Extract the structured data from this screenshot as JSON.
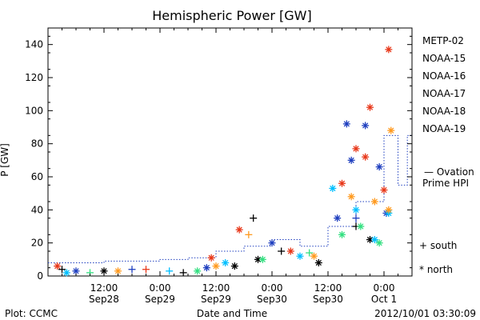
{
  "chart_data": {
    "type": "scatter",
    "title": "Hemispheric Power [GW]",
    "ylabel": "P [GW]",
    "xlabel": "Date and Time",
    "ylim": [
      0,
      150
    ],
    "xlim": [
      "2012-09-28T00:00",
      "2012-10-01T06:00"
    ],
    "y_ticks": [
      0,
      20,
      40,
      60,
      80,
      100,
      120,
      140
    ],
    "x_ticks": [
      {
        "time": "2012-09-28T12:00",
        "label": "12:00",
        "sublabel": "Sep28"
      },
      {
        "time": "2012-09-29T00:00",
        "label": "0:00",
        "sublabel": "Sep29"
      },
      {
        "time": "2012-09-29T12:00",
        "label": "12:00",
        "sublabel": "Sep29"
      },
      {
        "time": "2012-09-30T00:00",
        "label": "0:00",
        "sublabel": "Sep30"
      },
      {
        "time": "2012-09-30T12:00",
        "label": "12:00",
        "sublabel": "Sep30"
      },
      {
        "time": "2012-10-01T00:00",
        "label": "0:00",
        "sublabel": "Oct 1"
      }
    ],
    "legend_position": "right",
    "series": [
      {
        "name": "METP-02",
        "color": "#000000",
        "points": [
          [
            "2012-09-28T03:00",
            4,
            "south"
          ],
          [
            "2012-09-28T12:00",
            3,
            "north"
          ],
          [
            "2012-09-29T05:00",
            2,
            "south"
          ],
          [
            "2012-09-29T16:00",
            6,
            "north"
          ],
          [
            "2012-09-29T20:00",
            35,
            "south"
          ],
          [
            "2012-09-29T21:00",
            10,
            "north"
          ],
          [
            "2012-09-30T02:00",
            15,
            "south"
          ],
          [
            "2012-09-30T10:00",
            8,
            "north"
          ],
          [
            "2012-09-30T18:00",
            30,
            "south"
          ],
          [
            "2012-09-30T21:00",
            22,
            "north"
          ]
        ]
      },
      {
        "name": "NOAA-15",
        "color": "#1f3fbf",
        "points": [
          [
            "2012-09-28T06:00",
            3,
            "north"
          ],
          [
            "2012-09-28T18:00",
            4,
            "south"
          ],
          [
            "2012-09-29T10:00",
            5,
            "north"
          ],
          [
            "2012-09-30T00:00",
            20,
            "north"
          ],
          [
            "2012-09-30T14:00",
            35,
            "north"
          ],
          [
            "2012-09-30T16:00",
            92,
            "north"
          ],
          [
            "2012-09-30T17:00",
            70,
            "north"
          ],
          [
            "2012-09-30T20:00",
            91,
            "north"
          ],
          [
            "2012-09-30T23:00",
            66,
            "north"
          ],
          [
            "2012-09-30T18:00",
            35,
            "south"
          ],
          [
            "2012-10-01T00:30",
            38,
            "north"
          ]
        ]
      },
      {
        "name": "NOAA-16",
        "color": "#00bfff",
        "points": [
          [
            "2012-09-28T04:00",
            2,
            "north"
          ],
          [
            "2012-09-29T02:00",
            3,
            "south"
          ],
          [
            "2012-09-29T14:00",
            8,
            "north"
          ],
          [
            "2012-09-30T06:00",
            12,
            "north"
          ],
          [
            "2012-09-30T13:00",
            53,
            "north"
          ],
          [
            "2012-09-30T18:00",
            40,
            "north"
          ],
          [
            "2012-09-30T22:00",
            22,
            "north"
          ],
          [
            "2012-10-01T01:00",
            38,
            "north"
          ]
        ]
      },
      {
        "name": "NOAA-17",
        "color": "#33e080",
        "points": [
          [
            "2012-09-28T09:00",
            2,
            "south"
          ],
          [
            "2012-09-29T08:00",
            3,
            "north"
          ],
          [
            "2012-09-29T22:00",
            10,
            "north"
          ],
          [
            "2012-09-30T08:00",
            14,
            "south"
          ],
          [
            "2012-09-30T15:00",
            25,
            "north"
          ],
          [
            "2012-09-30T19:00",
            30,
            "north"
          ],
          [
            "2012-09-30T23:00",
            20,
            "north"
          ]
        ]
      },
      {
        "name": "NOAA-18",
        "color": "#ff9a1f",
        "points": [
          [
            "2012-09-28T15:00",
            3,
            "north"
          ],
          [
            "2012-09-29T12:00",
            6,
            "north"
          ],
          [
            "2012-09-29T19:00",
            25,
            "south"
          ],
          [
            "2012-09-30T09:00",
            12,
            "north"
          ],
          [
            "2012-09-30T17:00",
            48,
            "north"
          ],
          [
            "2012-09-30T22:00",
            45,
            "north"
          ],
          [
            "2012-10-01T01:00",
            40,
            "north"
          ],
          [
            "2012-10-01T01:30",
            88,
            "north"
          ]
        ]
      },
      {
        "name": "NOAA-19",
        "color": "#e8381a",
        "points": [
          [
            "2012-09-28T02:00",
            6,
            "north"
          ],
          [
            "2012-09-28T21:00",
            4,
            "south"
          ],
          [
            "2012-09-29T11:00",
            11,
            "north"
          ],
          [
            "2012-09-29T17:00",
            28,
            "north"
          ],
          [
            "2012-09-30T04:00",
            15,
            "north"
          ],
          [
            "2012-09-30T15:00",
            56,
            "north"
          ],
          [
            "2012-09-30T18:00",
            77,
            "north"
          ],
          [
            "2012-09-30T20:00",
            72,
            "north"
          ],
          [
            "2012-09-30T21:00",
            102,
            "north"
          ],
          [
            "2012-10-01T00:00",
            52,
            "north"
          ],
          [
            "2012-10-01T01:00",
            137,
            "north"
          ]
        ]
      }
    ],
    "ovation_series": {
      "name": "Ovation Prime HPI",
      "color": "#1f3fbf",
      "points": [
        [
          "2012-09-28T00:00",
          8
        ],
        [
          "2012-09-28T12:00",
          9
        ],
        [
          "2012-09-29T00:00",
          10
        ],
        [
          "2012-09-29T06:00",
          11
        ],
        [
          "2012-09-29T12:00",
          15
        ],
        [
          "2012-09-29T18:00",
          18
        ],
        [
          "2012-09-30T00:00",
          22
        ],
        [
          "2012-09-30T06:00",
          18
        ],
        [
          "2012-09-30T12:00",
          30
        ],
        [
          "2012-09-30T18:00",
          45
        ],
        [
          "2012-10-01T00:00",
          85
        ],
        [
          "2012-10-01T03:00",
          55
        ],
        [
          "2012-10-01T05:00",
          85
        ]
      ]
    }
  },
  "legend": {
    "items": [
      "METP-02",
      "NOAA-15",
      "NOAA-16",
      "NOAA-17",
      "NOAA-18",
      "NOAA-19"
    ],
    "ovation_line1": "— Ovation",
    "ovation_line2": "Prime HPI",
    "south_label": "+ south",
    "north_label": "* north"
  },
  "footer": {
    "left": "Plot: CCMC",
    "center": "Date and Time",
    "right": "2012/10/01 03:30:09"
  }
}
